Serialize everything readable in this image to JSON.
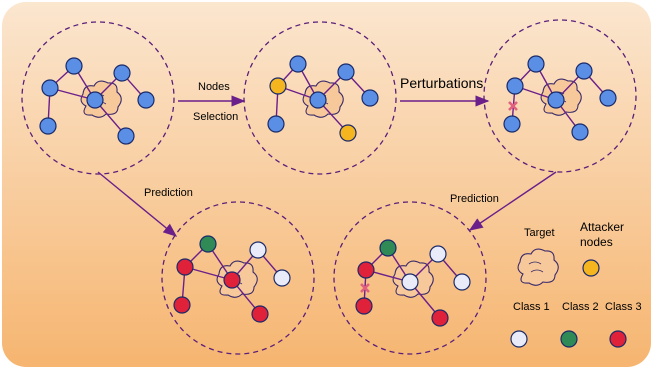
{
  "labels": {
    "nodes": "Nodes",
    "selection": "Selection",
    "perturbations": "Perturbations",
    "prediction_left": "Prediction",
    "prediction_right": "Prediction",
    "target": "Target",
    "attacker": "Attacker",
    "nodes_word": "nodes",
    "class1": "Class 1",
    "class2": "Class 2",
    "class3": "Class 3"
  },
  "colors": {
    "background_light": "#fbe3c7",
    "background_dark": "#f6b872",
    "normal_node": "#5b8fe6",
    "attacker_node": "#f5b51f",
    "class1": "#e9ecf8",
    "class2": "#2f8a55",
    "class3": "#e0213a",
    "edge": "#6a1f8a",
    "perturbation_mark": "#e0607f"
  },
  "icons": {
    "target": "cloud-shape",
    "perturbation": "x-mark"
  }
}
